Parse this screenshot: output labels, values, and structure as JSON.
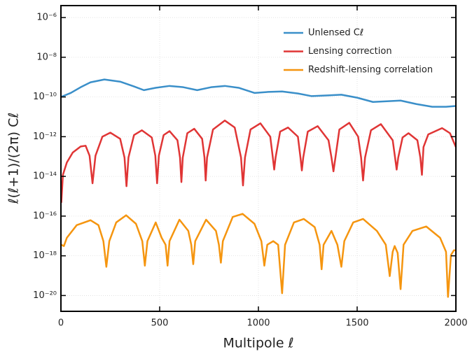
{
  "chart_data": {
    "type": "line",
    "xlabel": "Multipole ℓ",
    "ylabel": "ℓ(ℓ+1)/(2π) Cℓ",
    "xlim": [
      0,
      2000
    ],
    "xticks": [
      0,
      500,
      1000,
      1500,
      2000
    ],
    "ylim": [
      1.6e-21,
      4e-06
    ],
    "yscale": "log",
    "yticks": [
      {
        "value": 1e-20,
        "label": "10⁻²⁰"
      },
      {
        "value": 1e-18,
        "label": "10⁻¹⁸"
      },
      {
        "value": 1e-16,
        "label": "10⁻¹⁶"
      },
      {
        "value": 1e-14,
        "label": "10⁻¹⁴"
      },
      {
        "value": 1e-12,
        "label": "10⁻¹²"
      },
      {
        "value": 1e-10,
        "label": "10⁻¹⁰"
      },
      {
        "value": 1e-08,
        "label": "10⁻⁸"
      },
      {
        "value": 1e-06,
        "label": "10⁻⁶"
      }
    ],
    "grid": true,
    "legend": "upper right",
    "series": [
      {
        "name": "Unlensed Cℓ",
        "color": "#3a8fc9",
        "x": [
          0,
          50,
          100,
          150,
          220,
          300,
          370,
          420,
          480,
          550,
          620,
          690,
          760,
          830,
          900,
          980,
          1050,
          1120,
          1200,
          1270,
          1350,
          1420,
          1500,
          1580,
          1650,
          1720,
          1800,
          1880,
          1950,
          2000
        ],
        "values": [
          1e-10,
          1.6e-10,
          3.1e-10,
          5.5e-10,
          7.6e-10,
          5.9e-10,
          3.4e-10,
          2.2e-10,
          2.9e-10,
          3.6e-10,
          3.1e-10,
          2.2e-10,
          3.1e-10,
          3.6e-10,
          2.9e-10,
          1.6e-10,
          1.8e-10,
          1.9e-10,
          1.5e-10,
          1.1e-10,
          1.2e-10,
          1.3e-10,
          9.2e-11,
          5.6e-11,
          6.1e-11,
          6.6e-11,
          4.4e-11,
          3.2e-11,
          3.2e-11,
          3.5e-11
        ]
      },
      {
        "name": "Lensing correction",
        "color": "#e03535",
        "x": [
          2,
          10,
          30,
          60,
          100,
          125,
          145,
          160,
          175,
          210,
          250,
          300,
          322,
          332,
          342,
          370,
          410,
          460,
          478,
          487,
          496,
          520,
          550,
          590,
          603,
          610,
          617,
          640,
          675,
          715,
          727,
          733,
          740,
          770,
          830,
          880,
          912,
          922,
          932,
          960,
          1010,
          1060,
          1073,
          1080,
          1087,
          1110,
          1150,
          1200,
          1213,
          1220,
          1227,
          1250,
          1300,
          1355,
          1370,
          1380,
          1390,
          1410,
          1460,
          1505,
          1520,
          1530,
          1540,
          1570,
          1620,
          1680,
          1692,
          1700,
          1708,
          1730,
          1760,
          1805,
          1820,
          1828,
          1836,
          1860,
          1930,
          1970,
          2000
        ],
        "values": [
          4.7e-16,
          1.2e-14,
          5e-14,
          1.6e-13,
          3.2e-13,
          3.5e-13,
          1.1e-13,
          4.5e-15,
          1.1e-13,
          1e-12,
          1.6e-12,
          7.8e-13,
          8.9e-14,
          3.2e-15,
          8.9e-14,
          1.2e-12,
          2.1e-12,
          9.1e-13,
          1.1e-13,
          4.5e-15,
          1.1e-13,
          1.2e-12,
          1.9e-12,
          6.6e-13,
          8.9e-14,
          5.2e-15,
          8.9e-14,
          1.5e-12,
          2.5e-12,
          7.8e-13,
          8.9e-14,
          6.2e-15,
          8.9e-14,
          2.3e-12,
          6.5e-12,
          2.9e-12,
          8.9e-14,
          3.5e-15,
          8.9e-14,
          2.3e-12,
          4.7e-12,
          1e-12,
          8.9e-14,
          2.2e-14,
          8.9e-14,
          1.8e-12,
          2.9e-12,
          1e-12,
          8.9e-14,
          2e-14,
          8.9e-14,
          1.8e-12,
          3.4e-12,
          6.6e-13,
          8.9e-14,
          1.8e-14,
          8.9e-14,
          2.3e-12,
          5e-12,
          1e-12,
          8.9e-14,
          6.2e-15,
          8.9e-14,
          2.1e-12,
          4.3e-12,
          6.6e-13,
          8.9e-14,
          2.2e-14,
          8.9e-14,
          9.1e-13,
          1.5e-12,
          6.6e-13,
          8.9e-14,
          1.2e-14,
          3e-13,
          1.3e-12,
          2.7e-12,
          1.5e-12,
          3e-13
        ]
      },
      {
        "name": "Redshift-lensing correlation",
        "color": "#f5950f",
        "x": [
          2,
          15,
          30,
          80,
          150,
          190,
          215,
          230,
          245,
          280,
          330,
          380,
          412,
          425,
          438,
          480,
          510,
          530,
          540,
          550,
          600,
          645,
          660,
          670,
          680,
          735,
          785,
          800,
          810,
          820,
          870,
          920,
          980,
          1015,
          1030,
          1045,
          1075,
          1100,
          1120,
          1135,
          1180,
          1230,
          1285,
          1310,
          1320,
          1330,
          1370,
          1400,
          1420,
          1435,
          1480,
          1530,
          1600,
          1645,
          1665,
          1680,
          1690,
          1705,
          1720,
          1735,
          1780,
          1850,
          1920,
          1950,
          1960,
          1975,
          1990,
          2000
        ],
        "values": [
          3.6e-18,
          3.1e-18,
          8.1e-18,
          3.5e-17,
          6.2e-17,
          3.5e-17,
          5.5e-18,
          2.8e-19,
          5.5e-18,
          4.8e-17,
          1.1e-16,
          4.1e-17,
          5.5e-18,
          3.2e-19,
          5.5e-18,
          4.8e-17,
          8.1e-18,
          3.6e-18,
          3.2e-19,
          5.5e-18,
          6.6e-17,
          1.8e-17,
          3.6e-18,
          3.8e-19,
          5.5e-18,
          6.6e-17,
          1.8e-17,
          3.6e-18,
          4.5e-19,
          5.5e-18,
          9.1e-17,
          1.3e-16,
          4.1e-17,
          5.5e-18,
          3.2e-19,
          3.6e-18,
          5.5e-18,
          3.6e-18,
          1.3e-20,
          3.6e-18,
          4.8e-17,
          7.2e-17,
          2.8e-17,
          3.6e-18,
          2.1e-19,
          3.6e-18,
          1.8e-17,
          3.6e-18,
          2.8e-19,
          5.5e-18,
          4.8e-17,
          7.2e-17,
          1.8e-17,
          3.6e-18,
          9.5e-20,
          1.6e-18,
          3.1e-18,
          1.4e-18,
          2.1e-20,
          3.6e-18,
          1.8e-17,
          3e-17,
          8.1e-18,
          1.6e-18,
          8.5e-21,
          1.1e-18,
          1.9e-18,
          1.9e-18
        ]
      }
    ]
  }
}
